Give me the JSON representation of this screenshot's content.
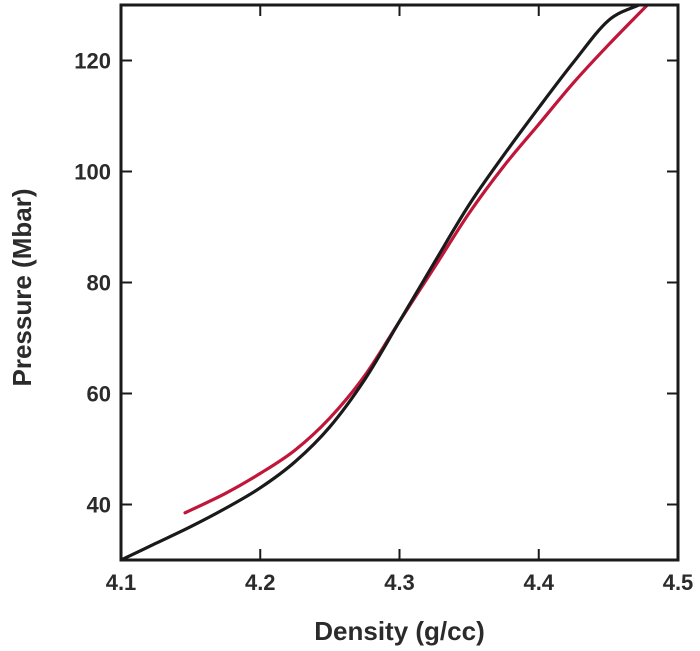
{
  "chart_data": {
    "type": "line",
    "title": "",
    "xlabel": "Density (g/cc)",
    "ylabel": "Pressure (Mbar)",
    "xlim": [
      4.1,
      4.5
    ],
    "ylim": [
      30,
      130
    ],
    "x_ticks": [
      4.1,
      4.2,
      4.3,
      4.4,
      4.5
    ],
    "x_tick_labels": [
      "4.1",
      "4.2",
      "4.3",
      "4.4",
      "4.5"
    ],
    "y_ticks": [
      40,
      60,
      80,
      100,
      120
    ],
    "y_tick_labels": [
      "40",
      "60",
      "80",
      "100",
      "120"
    ],
    "grid": false,
    "legend": "none",
    "series": [
      {
        "name": "black curve",
        "color": "#1a1a1a",
        "x": [
          4.1,
          4.125,
          4.15,
          4.175,
          4.2,
          4.225,
          4.25,
          4.275,
          4.3,
          4.325,
          4.35,
          4.375,
          4.4,
          4.425,
          4.45,
          4.472
        ],
        "y": [
          30.0,
          33.0,
          36.0,
          39.3,
          43.0,
          47.7,
          54.0,
          62.5,
          73.0,
          83.6,
          94.0,
          103.0,
          111.5,
          119.7,
          127.2,
          130.0
        ]
      },
      {
        "name": "red curve",
        "color": "#c0163a",
        "x": [
          4.146,
          4.175,
          4.2,
          4.225,
          4.25,
          4.275,
          4.3,
          4.325,
          4.35,
          4.375,
          4.4,
          4.425,
          4.45,
          4.478
        ],
        "y": [
          38.5,
          42.0,
          45.6,
          49.8,
          55.6,
          63.2,
          73.0,
          82.7,
          92.5,
          101.0,
          108.5,
          116.0,
          122.8,
          130.0
        ]
      }
    ]
  }
}
